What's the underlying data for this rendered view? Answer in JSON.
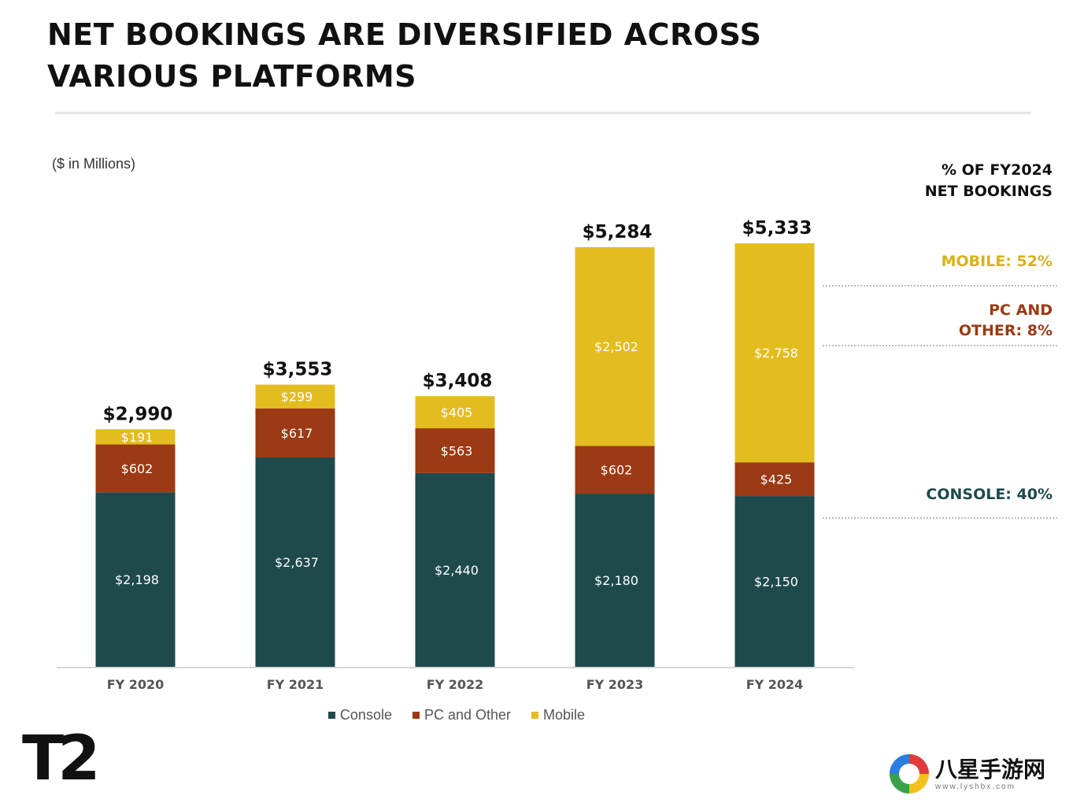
{
  "title": {
    "line1": "NET BOOKINGS ARE DIVERSIFIED ACROSS",
    "line2": "VARIOUS PLATFORMS"
  },
  "units": "($ in Millions)",
  "side_panel": {
    "heading_line1": "% OF FY2024",
    "heading_line2": "NET BOOKINGS",
    "mobile": "MOBILE: 52%",
    "pc_line1": "PC AND",
    "pc_line2": "OTHER: 8%",
    "console": "CONSOLE: 40%"
  },
  "legend": {
    "console": "Console",
    "pc": "PC and Other",
    "mobile": "Mobile"
  },
  "logo": "T2",
  "watermark": {
    "text": "八星手游网",
    "sub": "www.lyshbx.com"
  },
  "colors": {
    "console": "#1e4a4c",
    "pc": "#9b3a14",
    "mobile": "#e3bd1f",
    "mobile_text": "#d9b21a",
    "pc_text": "#9b3a14",
    "console_text": "#1e4a4c",
    "axis": "#cccccc"
  },
  "chart_data": {
    "type": "bar",
    "stacked": true,
    "categories": [
      "FY 2020",
      "FY 2021",
      "FY 2022",
      "FY 2023",
      "FY 2024"
    ],
    "series": [
      {
        "name": "Console",
        "values": [
          2198,
          2637,
          2440,
          2180,
          2150
        ],
        "labels": [
          "$2,198",
          "$2,637",
          "$2,440",
          "$2,180",
          "$2,150"
        ]
      },
      {
        "name": "PC and Other",
        "values": [
          602,
          617,
          563,
          602,
          425
        ],
        "labels": [
          "$602",
          "$617",
          "$563",
          "$602",
          "$425"
        ]
      },
      {
        "name": "Mobile",
        "values": [
          191,
          299,
          405,
          2502,
          2758
        ],
        "labels": [
          "$191",
          "$299",
          "$405",
          "$2,502",
          "$2,758"
        ]
      }
    ],
    "totals": [
      2990,
      3553,
      3408,
      5284,
      5333
    ],
    "total_labels": [
      "$2,990",
      "$3,553",
      "$3,408",
      "$5,284",
      "$5,333"
    ],
    "ylim": [
      0,
      5333
    ],
    "grid": false,
    "legend_position": "bottom"
  }
}
